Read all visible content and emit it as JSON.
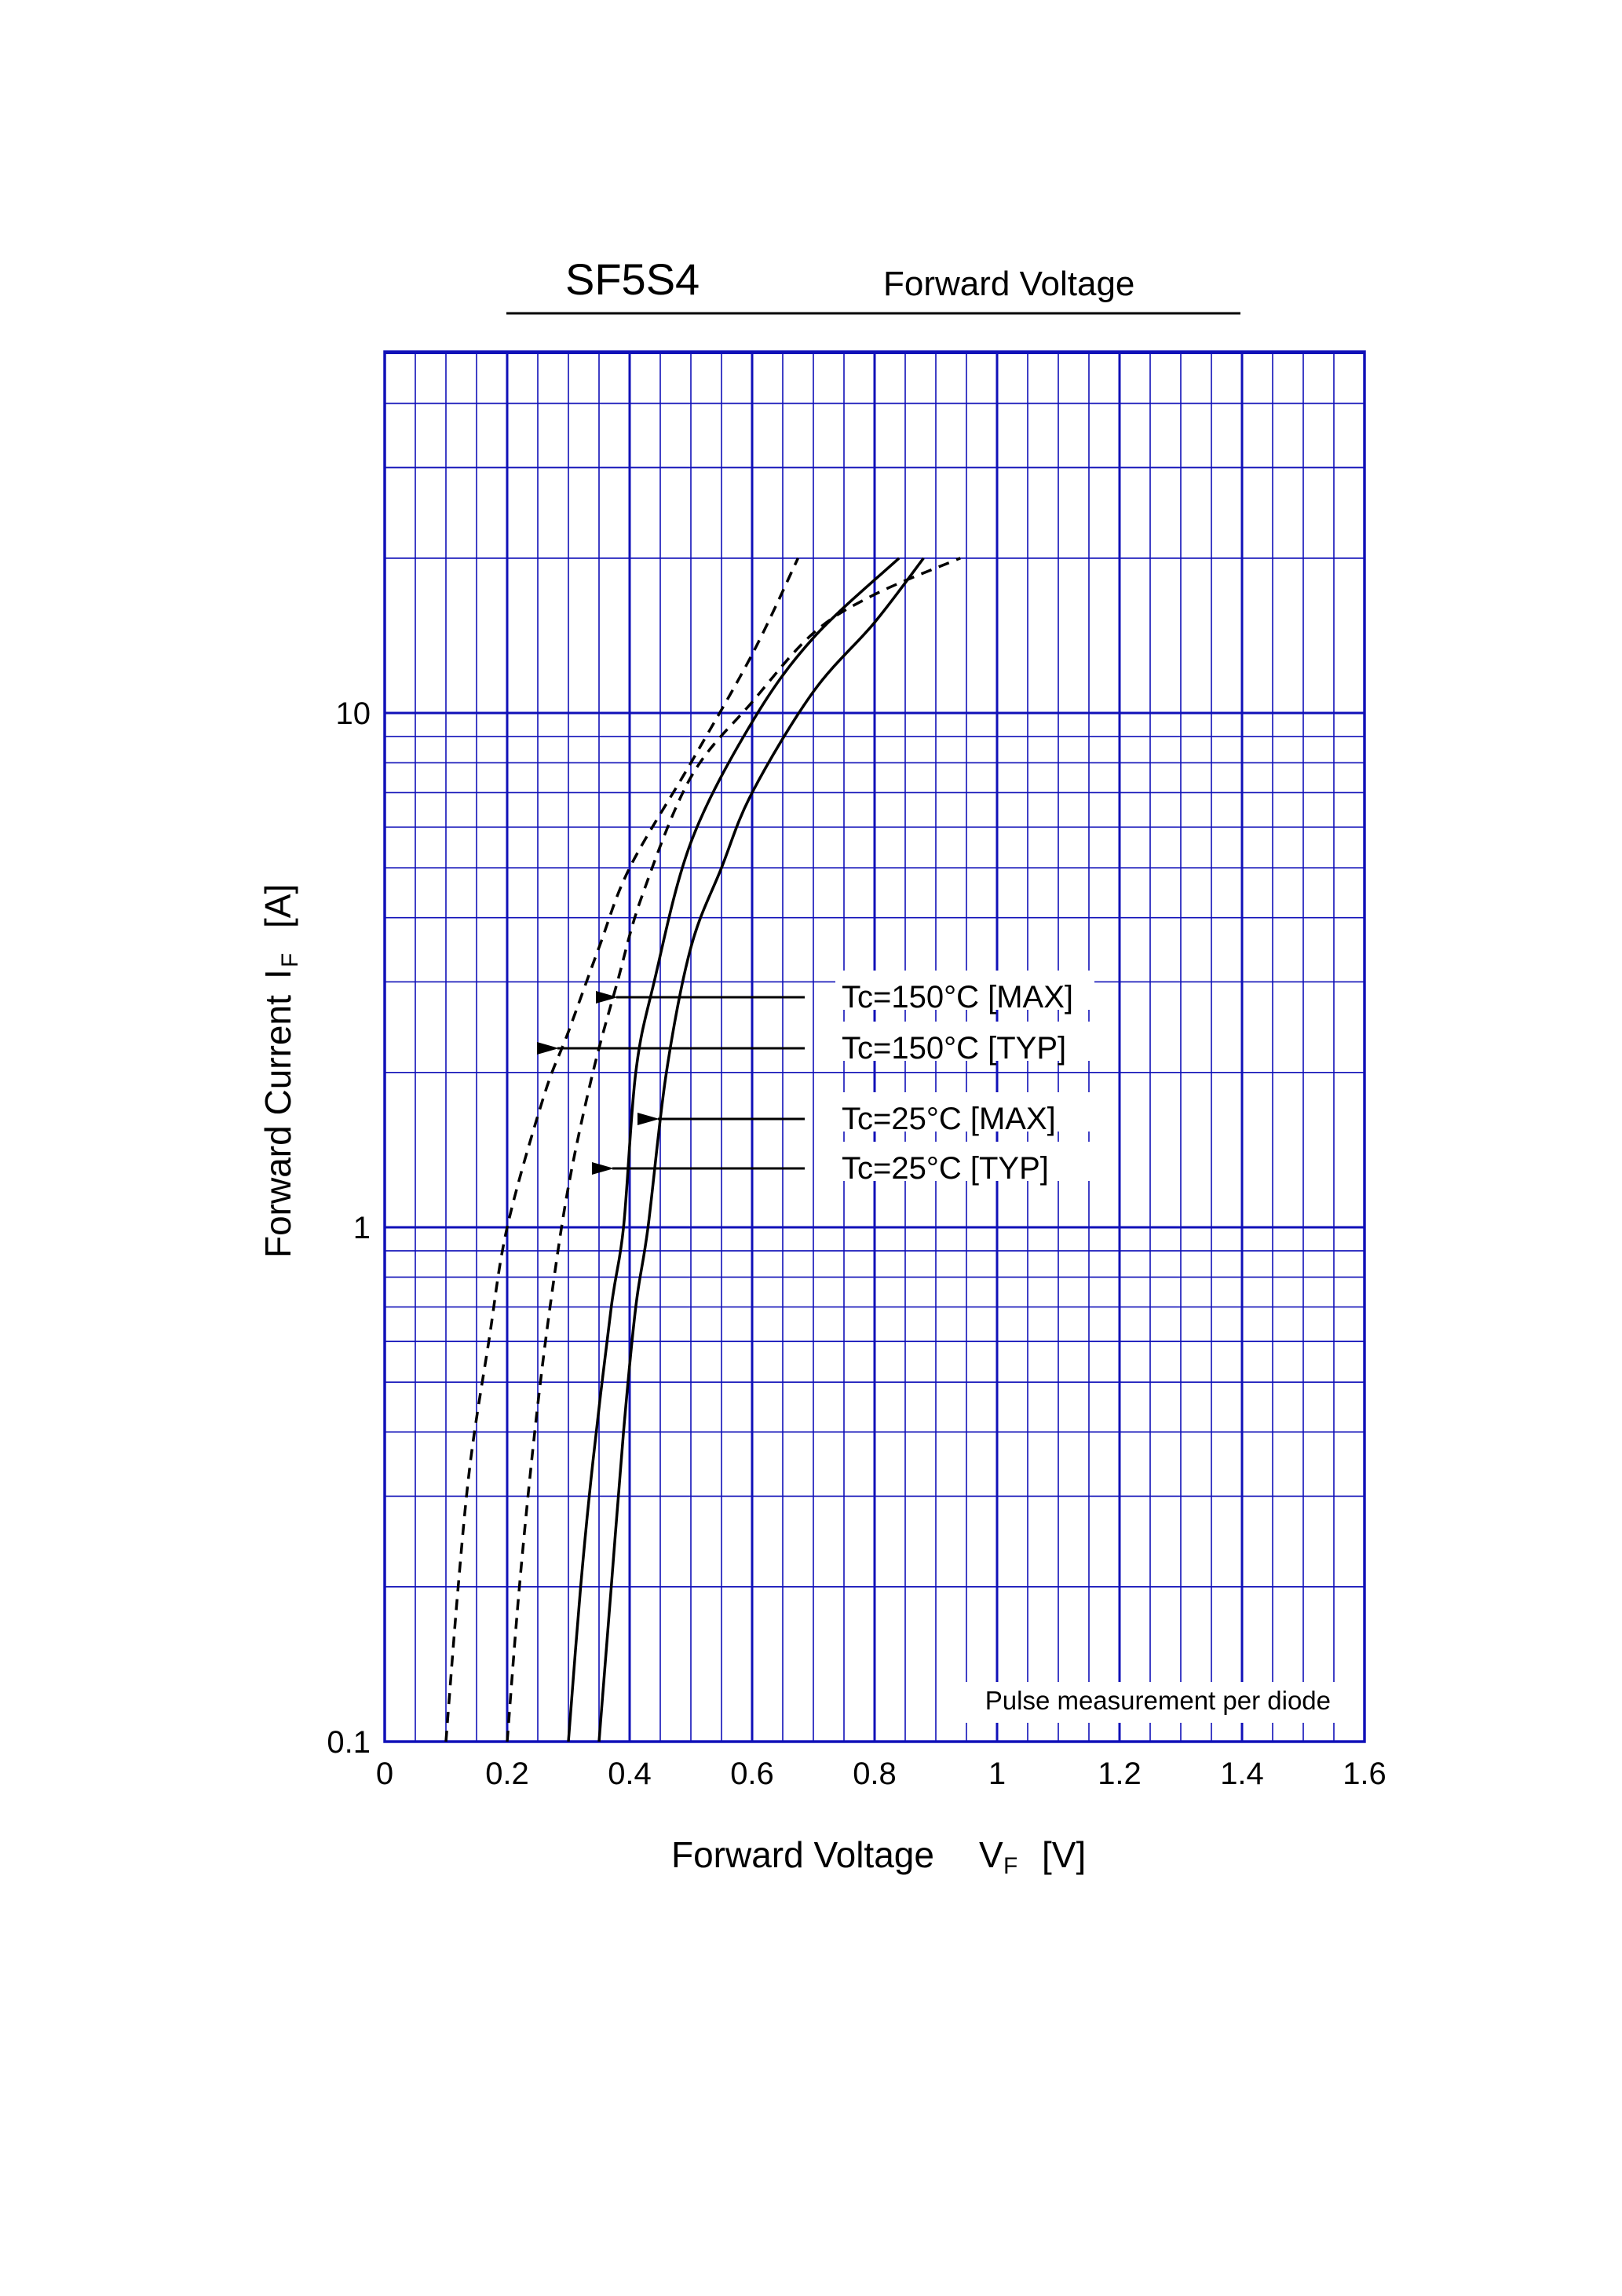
{
  "chart_data": {
    "type": "line",
    "part_number": "SF5S4",
    "title": "Forward Voltage",
    "xlabel": "Forward Voltage",
    "xlabel_symbol": "V",
    "xlabel_sub": "F",
    "xlabel_unit": "[V]",
    "ylabel": "Forward Current",
    "ylabel_symbol": "I",
    "ylabel_sub": "F",
    "ylabel_unit": "[A]",
    "x_scale": "linear",
    "y_scale": "log",
    "xlim": [
      0,
      1.6
    ],
    "ylim": [
      0.1,
      40
    ],
    "x_ticks": [
      "0",
      "0.2",
      "0.4",
      "0.6",
      "0.8",
      "1",
      "1.2",
      "1.4",
      "1.6"
    ],
    "y_ticks": [
      "0.1",
      "1",
      "10"
    ],
    "grid": true,
    "note": "Pulse measurement per diode",
    "series": [
      {
        "name": "Tc=150°C [MAX]",
        "style": "dashed",
        "points": [
          [
            0.2,
            0.1
          ],
          [
            0.22,
            0.2
          ],
          [
            0.245,
            0.4
          ],
          [
            0.27,
            0.7
          ],
          [
            0.3,
            1.2
          ],
          [
            0.34,
            2.0
          ],
          [
            0.38,
            3.0
          ],
          [
            0.42,
            4.4
          ],
          [
            0.5,
            7.5
          ],
          [
            0.6,
            10.5
          ],
          [
            0.7,
            14.3
          ],
          [
            0.8,
            17.0
          ],
          [
            0.94,
            20.0
          ]
        ]
      },
      {
        "name": "Tc=150°C [TYP]",
        "style": "dashed",
        "points": [
          [
            0.1,
            0.1
          ],
          [
            0.12,
            0.2
          ],
          [
            0.14,
            0.35
          ],
          [
            0.17,
            0.6
          ],
          [
            0.2,
            1.0
          ],
          [
            0.26,
            1.8
          ],
          [
            0.3,
            2.4
          ],
          [
            0.35,
            3.5
          ],
          [
            0.4,
            5.0
          ],
          [
            0.5,
            8.0
          ],
          [
            0.6,
            13.0
          ],
          [
            0.675,
            20.0
          ]
        ]
      },
      {
        "name": "Tc=25°C [MAX]",
        "style": "solid",
        "points": [
          [
            0.35,
            0.1
          ],
          [
            0.37,
            0.2
          ],
          [
            0.39,
            0.4
          ],
          [
            0.41,
            0.7
          ],
          [
            0.43,
            1.0
          ],
          [
            0.46,
            2.0
          ],
          [
            0.5,
            3.5
          ],
          [
            0.55,
            5.0
          ],
          [
            0.6,
            7.0
          ],
          [
            0.7,
            11.0
          ],
          [
            0.8,
            15.0
          ],
          [
            0.88,
            20.0
          ]
        ]
      },
      {
        "name": "Tc=25°C [TYP]",
        "style": "solid",
        "points": [
          [
            0.3,
            0.1
          ],
          [
            0.32,
            0.2
          ],
          [
            0.34,
            0.35
          ],
          [
            0.37,
            0.7
          ],
          [
            0.39,
            1.0
          ],
          [
            0.41,
            2.0
          ],
          [
            0.44,
            3.0
          ],
          [
            0.5,
            5.6
          ],
          [
            0.6,
            9.6
          ],
          [
            0.7,
            14.0
          ],
          [
            0.84,
            20.0
          ]
        ]
      }
    ],
    "annotations": [
      {
        "text": "Tc=150°C [MAX]",
        "series": 0
      },
      {
        "text": "Tc=150°C [TYP]",
        "series": 1
      },
      {
        "text": "Tc=25°C [MAX]",
        "series": 2
      },
      {
        "text": "Tc=25°C [TYP]",
        "series": 3
      }
    ],
    "colors": {
      "grid": "#1010b8",
      "curve": "#000000"
    }
  }
}
